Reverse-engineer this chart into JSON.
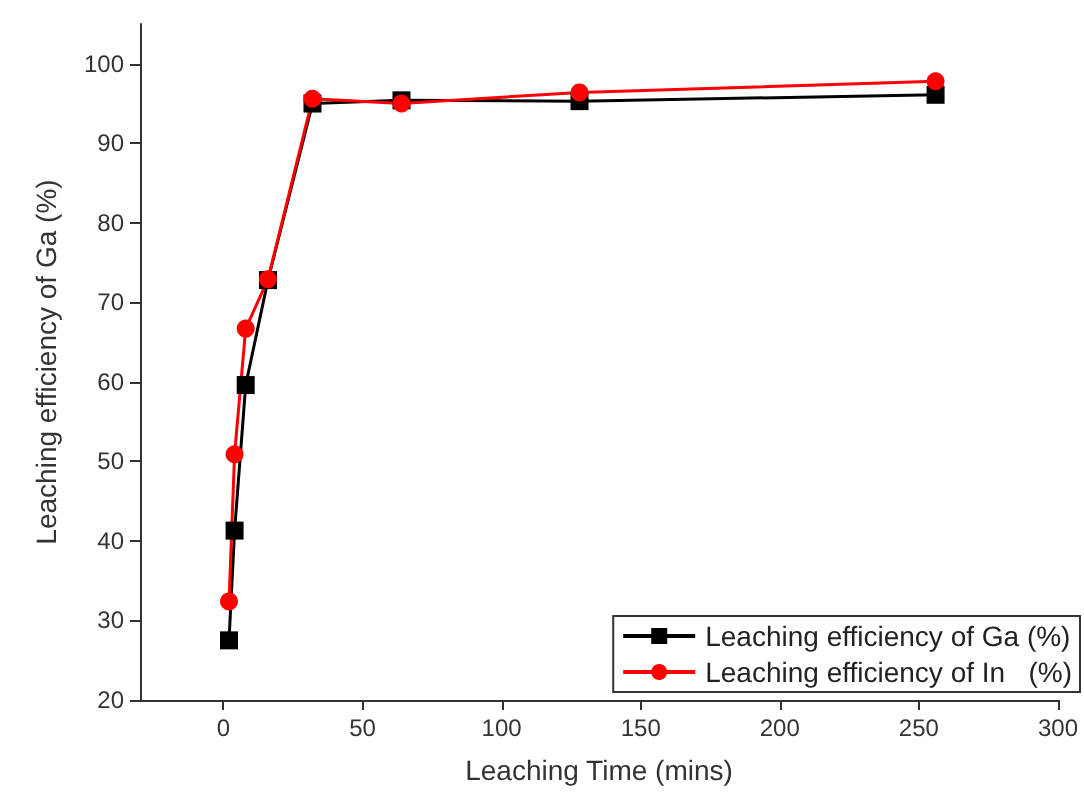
{
  "chart_data": {
    "type": "line",
    "xlabel": "Leaching Time (mins)",
    "ylabel": "Leaching efficiency of Ga (%)",
    "x": [
      2,
      4,
      8,
      16,
      32,
      64,
      128,
      256
    ],
    "series": [
      {
        "name": "Leaching efficiency of Ga (%)",
        "color": "#000000",
        "marker": "square",
        "values": [
          27.5,
          41.3,
          59.6,
          72.8,
          95.0,
          95.4,
          95.3,
          96.1
        ]
      },
      {
        "name": "Leaching efficiency of In   (%)",
        "color": "#ff0000",
        "marker": "circle",
        "values": [
          32.4,
          50.9,
          66.7,
          72.9,
          95.6,
          95.0,
          96.4,
          97.8
        ]
      }
    ],
    "xlim": [
      -30,
      300
    ],
    "xticks": [
      0,
      50,
      100,
      150,
      200,
      250,
      300
    ],
    "ylim": [
      20,
      105
    ],
    "yticks": [
      20,
      30,
      40,
      50,
      60,
      70,
      80,
      90,
      100
    ],
    "grid": false,
    "legend": "bottom right"
  }
}
